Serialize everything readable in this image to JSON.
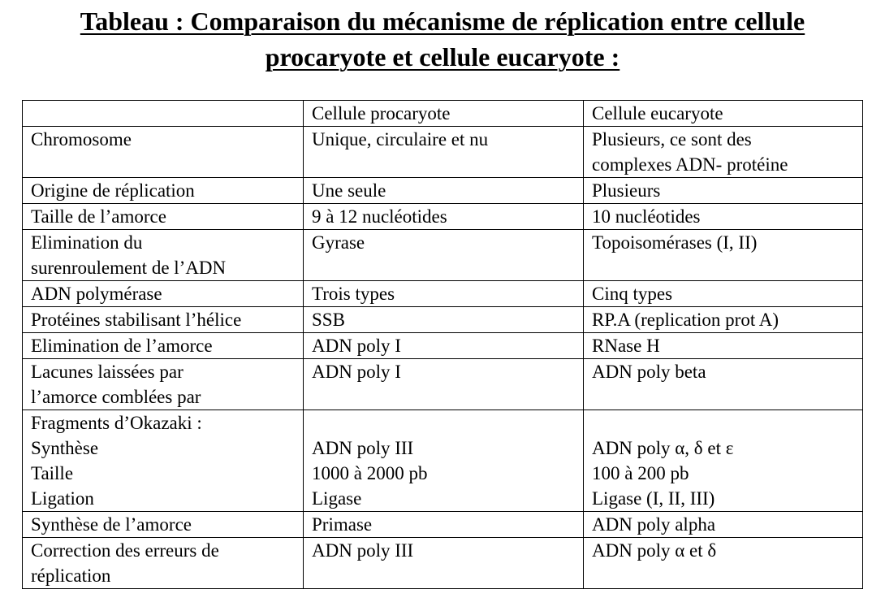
{
  "title": {
    "line1": "Tableau : Comparaison du mécanisme de réplication entre cellule",
    "line2": "procaryote et cellule eucaryote :"
  },
  "table": {
    "headers": [
      "",
      "Cellule procaryote",
      "Cellule eucaryote"
    ],
    "rows": [
      {
        "label": [
          "Chromosome"
        ],
        "pro": [
          "Unique, circulaire et nu"
        ],
        "euc": [
          "Plusieurs, ce sont des",
          "complexes ADN- protéine"
        ]
      },
      {
        "label": [
          "Origine de réplication"
        ],
        "pro": [
          "Une seule"
        ],
        "euc": [
          "Plusieurs"
        ]
      },
      {
        "label": [
          "Taille de l’amorce"
        ],
        "pro": [
          "9 à 12 nucléotides"
        ],
        "euc": [
          "10 nucléotides"
        ]
      },
      {
        "label": [
          "Elimination du",
          "surenroulement de l’ADN"
        ],
        "pro": [
          "Gyrase"
        ],
        "euc": [
          "Topoisomérases (I, II)"
        ]
      },
      {
        "label": [
          "ADN polymérase"
        ],
        "pro": [
          "Trois types"
        ],
        "euc": [
          "Cinq types"
        ]
      },
      {
        "label": [
          "Protéines stabilisant l’hélice"
        ],
        "pro": [
          "SSB"
        ],
        "euc": [
          "RP.A (replication prot A)"
        ]
      },
      {
        "label": [
          "Elimination de l’amorce"
        ],
        "pro": [
          "ADN poly I"
        ],
        "euc": [
          "RNase H"
        ]
      },
      {
        "label": [
          "Lacunes laissées par",
          "l’amorce comblées par"
        ],
        "pro": [
          "ADN poly I"
        ],
        "euc": [
          "ADN poly beta"
        ]
      },
      {
        "label": [
          "Fragments d’Okazaki :",
          "Synthèse",
          "Taille",
          "Ligation"
        ],
        "pro": [
          "",
          "ADN poly III",
          "1000 à 2000 pb",
          "Ligase"
        ],
        "euc": [
          "",
          "ADN poly α, δ et ε",
          "100 à 200 pb",
          "Ligase (I, II, III)"
        ]
      },
      {
        "label": [
          "Synthèse de l’amorce"
        ],
        "pro": [
          "Primase"
        ],
        "euc": [
          "ADN poly alpha"
        ]
      },
      {
        "label": [
          "Correction des erreurs de",
          "réplication"
        ],
        "pro": [
          "ADN poly III"
        ],
        "euc": [
          "ADN poly α et δ"
        ]
      }
    ]
  }
}
